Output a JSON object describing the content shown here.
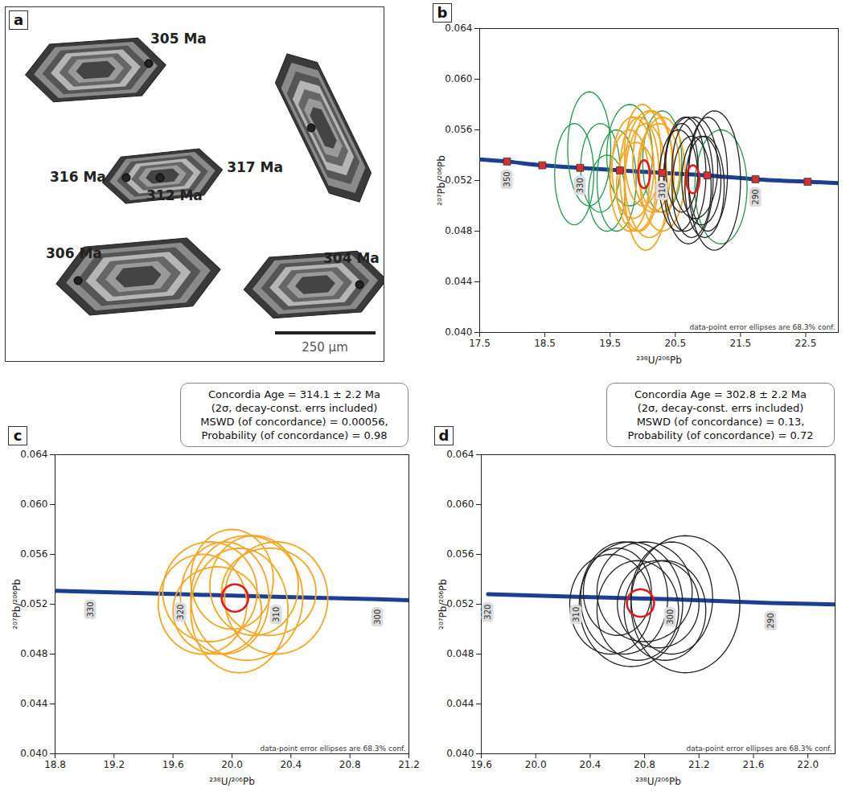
{
  "image_panel": {
    "panel": "a",
    "spots": [
      "305 Ma",
      "317 Ma",
      "316 Ma",
      "312 Ma",
      "306 Ma",
      "304 Ma"
    ],
    "scale_bar": "250 µm"
  },
  "chart_data": [
    {
      "type": "concordia",
      "panel": "b",
      "x_label": "²³⁸U/²⁰⁶Pb",
      "y_label": "²⁰⁷Pb/²⁰⁶Pb",
      "xlim": [
        17.5,
        23.0
      ],
      "xticks": [
        17.5,
        18.5,
        19.5,
        20.5,
        21.5,
        22.5
      ],
      "ylim": [
        0.04,
        0.064
      ],
      "yticks": [
        {
          "value": 0.04,
          "label": "0.040"
        },
        0.044,
        0.048,
        0.052,
        0.056,
        {
          "value": 0.06,
          "label": "0.060"
        },
        0.064
      ],
      "grid": false,
      "footnote": "data-point error ellipses are 68.3% conf.",
      "concordia": {
        "color": "#1c3f94",
        "marker": "square",
        "x": [
          17.41,
          17.92,
          18.46,
          19.04,
          19.65,
          20.3,
          20.99,
          21.73,
          22.53,
          23.37
        ],
        "y": [
          0.0537,
          0.0535,
          0.0532,
          0.053,
          0.0528,
          0.0526,
          0.0524,
          0.0521,
          0.0519,
          0.0517
        ],
        "labels": [
          null,
          350,
          null,
          330,
          null,
          310,
          null,
          290,
          null,
          null
        ]
      },
      "series": [
        {
          "type": "error_ellipse",
          "color": "#1f9a4a",
          "x": [
            19.18,
            18.95,
            19.35,
            19.6,
            19.45,
            19.8,
            21.2,
            20.3
          ],
          "y": [
            0.0545,
            0.0525,
            0.053,
            0.052,
            0.051,
            0.054,
            0.0515,
            0.0535
          ],
          "x_err": [
            0.33,
            0.3,
            0.3,
            0.3,
            0.28,
            0.35,
            0.4,
            0.3
          ],
          "y_err": [
            0.0045,
            0.004,
            0.0035,
            0.004,
            0.003,
            0.004,
            0.0045,
            0.004
          ]
        },
        {
          "type": "error_ellipse",
          "color": "#f5a623",
          "x": [
            19.85,
            19.95,
            20.05,
            20.15,
            20.3,
            19.9,
            20.0,
            20.25,
            19.8,
            20.1
          ],
          "y": [
            0.053,
            0.0525,
            0.0515,
            0.0535,
            0.0525,
            0.0515,
            0.054,
            0.053,
            0.052,
            0.0525
          ],
          "x_err": [
            0.32,
            0.3,
            0.33,
            0.3,
            0.35,
            0.3,
            0.28,
            0.32,
            0.3,
            0.38
          ],
          "y_err": [
            0.004,
            0.0045,
            0.005,
            0.004,
            0.0045,
            0.0035,
            0.004,
            0.0035,
            0.004,
            0.005
          ]
        },
        {
          "type": "error_ellipse",
          "color": "#222222",
          "x": [
            20.55,
            20.65,
            20.75,
            20.8,
            20.9,
            21.0,
            21.1,
            20.7,
            20.6,
            20.95
          ],
          "y": [
            0.052,
            0.0525,
            0.0515,
            0.053,
            0.052,
            0.0525,
            0.052,
            0.052,
            0.053,
            0.0515
          ],
          "x_err": [
            0.3,
            0.32,
            0.3,
            0.35,
            0.3,
            0.3,
            0.4,
            0.38,
            0.25,
            0.3
          ],
          "y_err": [
            0.004,
            0.0045,
            0.004,
            0.004,
            0.0035,
            0.0045,
            0.0055,
            0.005,
            0.0035,
            0.004
          ]
        },
        {
          "type": "concordia_age",
          "color": "#e01b1b",
          "x": [
            20.02,
            20.77
          ],
          "y": [
            0.0525,
            0.0521
          ],
          "x_err": [
            0.09,
            0.1
          ],
          "y_err": [
            0.0011,
            0.0011
          ]
        }
      ]
    },
    {
      "type": "concordia",
      "panel": "c",
      "x_label": "²³⁸U/²⁰⁶Pb",
      "y_label": "²⁰⁷Pb/²⁰⁶Pb",
      "xlim": [
        18.8,
        21.2
      ],
      "xticks": [
        18.8,
        19.2,
        19.6,
        {
          "value": 20,
          "label": "20.0"
        },
        20.4,
        20.8,
        21.2
      ],
      "ylim": [
        0.04,
        0.064
      ],
      "yticks": [
        {
          "value": 0.04,
          "label": "0.040"
        },
        0.044,
        0.048,
        0.052,
        0.056,
        {
          "value": 0.06,
          "label": "0.060"
        },
        0.064
      ],
      "grid": false,
      "annotation": [
        "Concordia Age = 314.1 ± 2.2 Ma",
        "(2σ, decay-const. errs included)",
        "MSWD (of concordance) = 0.00056,",
        "Probability (of concordance) = 0.98"
      ],
      "footnote": "data-point error ellipses are 68.3% conf.",
      "concordia": {
        "color": "#1c3f94",
        "x": [
          18.46,
          19.04,
          19.65,
          20.3,
          20.99,
          21.73
        ],
        "y": [
          0.0532,
          0.053,
          0.0528,
          0.0526,
          0.0524,
          0.0521
        ],
        "labels": [
          null,
          330,
          320,
          310,
          300,
          null
        ]
      },
      "series": [
        {
          "type": "error_ellipse",
          "color": "#f5a623",
          "x": [
            19.85,
            19.95,
            20.05,
            20.15,
            20.3,
            19.9,
            20.0,
            20.25,
            19.8,
            20.1
          ],
          "y": [
            0.053,
            0.0525,
            0.0515,
            0.0535,
            0.0525,
            0.0515,
            0.054,
            0.053,
            0.052,
            0.0525
          ],
          "x_err": [
            0.32,
            0.3,
            0.33,
            0.3,
            0.35,
            0.3,
            0.28,
            0.32,
            0.3,
            0.38
          ],
          "y_err": [
            0.004,
            0.0045,
            0.005,
            0.004,
            0.0045,
            0.0035,
            0.004,
            0.0035,
            0.004,
            0.005
          ]
        },
        {
          "type": "concordia_age",
          "color": "#e01b1b",
          "x": [
            20.02
          ],
          "y": [
            0.0525
          ],
          "x_err": [
            0.09
          ],
          "y_err": [
            0.0011
          ]
        }
      ]
    },
    {
      "type": "concordia",
      "panel": "d",
      "x_label": "²³⁸U/²⁰⁶Pb",
      "y_label": "²⁰⁷Pb/²⁰⁶Pb",
      "xlim": [
        19.6,
        22.2
      ],
      "xticks": [
        19.6,
        {
          "value": 20,
          "label": "20.0"
        },
        20.4,
        20.8,
        21.2,
        21.6,
        {
          "value": 22,
          "label": "22.0"
        }
      ],
      "ylim": [
        0.04,
        0.064
      ],
      "yticks": [
        {
          "value": 0.04,
          "label": "0.040"
        },
        0.044,
        0.048,
        0.052,
        0.056,
        {
          "value": 0.06,
          "label": "0.060"
        },
        0.064
      ],
      "grid": false,
      "annotation": [
        "Concordia Age = 302.8 ± 2.2 Ma",
        "(2σ, decay-const. errs included)",
        "MSWD (of concordance) = 0.13,",
        "Probability (of concordance) = 0.72"
      ],
      "footnote": "data-point error ellipses are 68.3% conf.",
      "concordia": {
        "color": "#1c3f94",
        "x": [
          19.65,
          20.3,
          20.99,
          21.73,
          22.53
        ],
        "y": [
          0.0528,
          0.0526,
          0.0524,
          0.0521,
          0.0519
        ],
        "labels": [
          320,
          310,
          300,
          290,
          null
        ]
      },
      "series": [
        {
          "type": "error_ellipse",
          "color": "#222222",
          "x": [
            20.55,
            20.65,
            20.75,
            20.8,
            20.9,
            21.0,
            21.1,
            20.7,
            20.6,
            20.95
          ],
          "y": [
            0.052,
            0.0525,
            0.0515,
            0.053,
            0.052,
            0.0525,
            0.052,
            0.052,
            0.053,
            0.0515
          ],
          "x_err": [
            0.3,
            0.32,
            0.3,
            0.35,
            0.3,
            0.3,
            0.4,
            0.38,
            0.25,
            0.3
          ],
          "y_err": [
            0.004,
            0.0045,
            0.004,
            0.004,
            0.0035,
            0.0045,
            0.0055,
            0.005,
            0.0035,
            0.004
          ]
        },
        {
          "type": "concordia_age",
          "color": "#e01b1b",
          "x": [
            20.77
          ],
          "y": [
            0.0521
          ],
          "x_err": [
            0.1
          ],
          "y_err": [
            0.0011
          ]
        }
      ]
    }
  ]
}
